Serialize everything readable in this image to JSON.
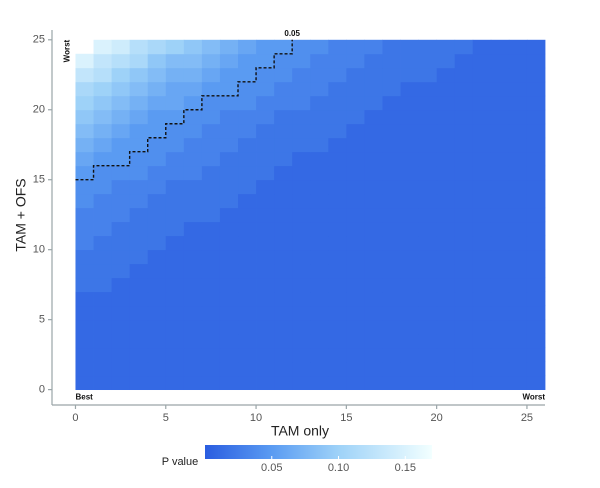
{
  "chart_data": {
    "type": "heatmap",
    "x_label": "TAM only",
    "y_label": "TAM + OFS",
    "x": [
      0,
      1,
      2,
      3,
      4,
      5,
      6,
      7,
      8,
      9,
      10,
      11,
      12,
      13,
      14,
      15,
      16,
      17,
      18,
      19,
      20,
      21,
      22,
      23,
      24,
      25
    ],
    "y": [
      0,
      1,
      2,
      3,
      4,
      5,
      6,
      7,
      8,
      9,
      10,
      11,
      12,
      13,
      14,
      15,
      16,
      17,
      18,
      19,
      20,
      21,
      22,
      23,
      24
    ],
    "z": [
      [
        0.01,
        0.01,
        0.01,
        0.01,
        0.01,
        0.01,
        0.01,
        0.01,
        0.01,
        0.01,
        0.01,
        0.01,
        0.01,
        0.01,
        0.01,
        0.01,
        0.01,
        0.01,
        0.01,
        0.01,
        0.01,
        0.01,
        0.01,
        0.01,
        0.01,
        0.01
      ],
      [
        0.01,
        0.01,
        0.01,
        0.01,
        0.01,
        0.01,
        0.01,
        0.01,
        0.01,
        0.01,
        0.01,
        0.01,
        0.01,
        0.01,
        0.01,
        0.01,
        0.01,
        0.01,
        0.01,
        0.01,
        0.01,
        0.01,
        0.01,
        0.01,
        0.01,
        0.01
      ],
      [
        0.01,
        0.01,
        0.01,
        0.01,
        0.01,
        0.01,
        0.01,
        0.01,
        0.01,
        0.01,
        0.01,
        0.01,
        0.01,
        0.01,
        0.01,
        0.01,
        0.01,
        0.01,
        0.01,
        0.01,
        0.01,
        0.01,
        0.01,
        0.01,
        0.01,
        0.01
      ],
      [
        0.01,
        0.01,
        0.01,
        0.01,
        0.01,
        0.01,
        0.01,
        0.01,
        0.01,
        0.01,
        0.01,
        0.01,
        0.01,
        0.01,
        0.01,
        0.01,
        0.01,
        0.01,
        0.01,
        0.01,
        0.01,
        0.01,
        0.01,
        0.01,
        0.01,
        0.01
      ],
      [
        0.01,
        0.01,
        0.01,
        0.01,
        0.01,
        0.01,
        0.01,
        0.01,
        0.01,
        0.01,
        0.01,
        0.01,
        0.01,
        0.01,
        0.01,
        0.01,
        0.01,
        0.01,
        0.01,
        0.01,
        0.01,
        0.01,
        0.01,
        0.01,
        0.01,
        0.01
      ],
      [
        0.01,
        0.01,
        0.01,
        0.01,
        0.01,
        0.01,
        0.01,
        0.01,
        0.01,
        0.01,
        0.01,
        0.01,
        0.01,
        0.01,
        0.01,
        0.01,
        0.01,
        0.01,
        0.01,
        0.01,
        0.01,
        0.01,
        0.01,
        0.01,
        0.01,
        0.01
      ],
      [
        0.01,
        0.01,
        0.01,
        0.01,
        0.01,
        0.01,
        0.01,
        0.01,
        0.01,
        0.01,
        0.01,
        0.01,
        0.01,
        0.01,
        0.01,
        0.01,
        0.01,
        0.01,
        0.01,
        0.01,
        0.01,
        0.01,
        0.01,
        0.01,
        0.01,
        0.01
      ],
      [
        0.02,
        0.02,
        0.01,
        0.01,
        0.01,
        0.01,
        0.01,
        0.01,
        0.01,
        0.01,
        0.01,
        0.01,
        0.01,
        0.01,
        0.01,
        0.01,
        0.01,
        0.01,
        0.01,
        0.01,
        0.01,
        0.01,
        0.01,
        0.01,
        0.01,
        0.01
      ],
      [
        0.02,
        0.02,
        0.02,
        0.01,
        0.01,
        0.01,
        0.01,
        0.01,
        0.01,
        0.01,
        0.01,
        0.01,
        0.01,
        0.01,
        0.01,
        0.01,
        0.01,
        0.01,
        0.01,
        0.01,
        0.01,
        0.01,
        0.01,
        0.01,
        0.01,
        0.01
      ],
      [
        0.02,
        0.02,
        0.02,
        0.02,
        0.01,
        0.01,
        0.01,
        0.01,
        0.01,
        0.01,
        0.01,
        0.01,
        0.01,
        0.01,
        0.01,
        0.01,
        0.01,
        0.01,
        0.01,
        0.01,
        0.01,
        0.01,
        0.01,
        0.01,
        0.01,
        0.01
      ],
      [
        0.03,
        0.02,
        0.02,
        0.02,
        0.02,
        0.01,
        0.01,
        0.01,
        0.01,
        0.01,
        0.01,
        0.01,
        0.01,
        0.01,
        0.01,
        0.01,
        0.01,
        0.01,
        0.01,
        0.01,
        0.01,
        0.01,
        0.01,
        0.01,
        0.01,
        0.01
      ],
      [
        0.03,
        0.03,
        0.02,
        0.02,
        0.02,
        0.02,
        0.01,
        0.01,
        0.01,
        0.01,
        0.01,
        0.01,
        0.01,
        0.01,
        0.01,
        0.01,
        0.01,
        0.01,
        0.01,
        0.01,
        0.01,
        0.01,
        0.01,
        0.01,
        0.01,
        0.01
      ],
      [
        0.03,
        0.03,
        0.03,
        0.02,
        0.02,
        0.02,
        0.02,
        0.02,
        0.01,
        0.01,
        0.01,
        0.01,
        0.01,
        0.01,
        0.01,
        0.01,
        0.01,
        0.01,
        0.01,
        0.01,
        0.01,
        0.01,
        0.01,
        0.01,
        0.01,
        0.01
      ],
      [
        0.04,
        0.03,
        0.03,
        0.03,
        0.02,
        0.02,
        0.02,
        0.02,
        0.02,
        0.01,
        0.01,
        0.01,
        0.01,
        0.01,
        0.01,
        0.01,
        0.01,
        0.01,
        0.01,
        0.01,
        0.01,
        0.01,
        0.01,
        0.01,
        0.01,
        0.01
      ],
      [
        0.04,
        0.04,
        0.03,
        0.03,
        0.03,
        0.02,
        0.02,
        0.02,
        0.02,
        0.02,
        0.01,
        0.01,
        0.01,
        0.01,
        0.01,
        0.01,
        0.01,
        0.01,
        0.01,
        0.01,
        0.01,
        0.01,
        0.01,
        0.01,
        0.01,
        0.01
      ],
      [
        0.05,
        0.04,
        0.04,
        0.04,
        0.03,
        0.03,
        0.03,
        0.02,
        0.02,
        0.02,
        0.02,
        0.01,
        0.01,
        0.01,
        0.01,
        0.01,
        0.01,
        0.01,
        0.01,
        0.01,
        0.01,
        0.01,
        0.01,
        0.01,
        0.01,
        0.01
      ],
      [
        0.06,
        0.05,
        0.05,
        0.04,
        0.04,
        0.03,
        0.03,
        0.03,
        0.02,
        0.02,
        0.02,
        0.02,
        0.01,
        0.01,
        0.01,
        0.01,
        0.01,
        0.01,
        0.01,
        0.01,
        0.01,
        0.01,
        0.01,
        0.01,
        0.01,
        0.01
      ],
      [
        0.07,
        0.06,
        0.05,
        0.05,
        0.04,
        0.04,
        0.03,
        0.03,
        0.03,
        0.02,
        0.02,
        0.02,
        0.02,
        0.02,
        0.01,
        0.01,
        0.01,
        0.01,
        0.01,
        0.01,
        0.01,
        0.01,
        0.01,
        0.01,
        0.01,
        0.01
      ],
      [
        0.08,
        0.07,
        0.06,
        0.05,
        0.05,
        0.04,
        0.04,
        0.03,
        0.03,
        0.03,
        0.02,
        0.02,
        0.02,
        0.02,
        0.02,
        0.01,
        0.01,
        0.01,
        0.01,
        0.01,
        0.01,
        0.01,
        0.01,
        0.01,
        0.01,
        0.01
      ],
      [
        0.09,
        0.08,
        0.07,
        0.06,
        0.05,
        0.05,
        0.04,
        0.04,
        0.03,
        0.03,
        0.03,
        0.02,
        0.02,
        0.02,
        0.02,
        0.02,
        0.01,
        0.01,
        0.01,
        0.01,
        0.01,
        0.01,
        0.01,
        0.01,
        0.01,
        0.01
      ],
      [
        0.1,
        0.09,
        0.08,
        0.07,
        0.06,
        0.06,
        0.05,
        0.04,
        0.04,
        0.04,
        0.03,
        0.03,
        0.03,
        0.02,
        0.02,
        0.02,
        0.02,
        0.01,
        0.01,
        0.01,
        0.01,
        0.01,
        0.01,
        0.01,
        0.01,
        0.01
      ],
      [
        0.11,
        0.1,
        0.09,
        0.08,
        0.07,
        0.06,
        0.06,
        0.05,
        0.05,
        0.04,
        0.04,
        0.03,
        0.03,
        0.03,
        0.02,
        0.02,
        0.02,
        0.02,
        0.01,
        0.01,
        0.01,
        0.01,
        0.01,
        0.01,
        0.01,
        0.01
      ],
      [
        0.13,
        0.12,
        0.1,
        0.09,
        0.08,
        0.07,
        0.07,
        0.06,
        0.05,
        0.05,
        0.04,
        0.04,
        0.03,
        0.03,
        0.03,
        0.02,
        0.02,
        0.02,
        0.02,
        0.02,
        0.01,
        0.01,
        0.01,
        0.01,
        0.01,
        0.01
      ],
      [
        0.15,
        0.13,
        0.12,
        0.11,
        0.09,
        0.08,
        0.08,
        0.07,
        0.06,
        0.05,
        0.05,
        0.04,
        0.04,
        0.03,
        0.03,
        0.03,
        0.02,
        0.02,
        0.02,
        0.02,
        0.02,
        0.01,
        0.01,
        0.01,
        0.01,
        0.01
      ],
      [
        null,
        0.15,
        0.14,
        0.12,
        0.11,
        0.1,
        0.09,
        0.08,
        0.07,
        0.06,
        0.05,
        0.05,
        0.04,
        0.04,
        0.03,
        0.03,
        0.03,
        0.02,
        0.02,
        0.02,
        0.02,
        0.02,
        0.01,
        0.01,
        0.01,
        0.01
      ]
    ],
    "xlim": [
      -1.3,
      26
    ],
    "ylim": [
      -1.1,
      25.7
    ],
    "xticks": [
      0,
      5,
      10,
      15,
      20,
      25
    ],
    "yticks": [
      0,
      5,
      10,
      15,
      20,
      25
    ],
    "colorscale": [
      [
        0,
        "#2a5de0"
      ],
      [
        0.05,
        "#5a9bf2"
      ],
      [
        0.1,
        "#9ed2f8"
      ],
      [
        0.17,
        "#f2ffff"
      ]
    ],
    "colorbar_title": "P value",
    "clim": [
      0,
      0.17
    ],
    "colorbar_ticks": [
      0.05,
      {
        "value": 0.1,
        "label": "0.10"
      },
      0.15
    ],
    "contour_level": 0.05,
    "corner_best": "Best",
    "corner_worst_x": "Worst",
    "corner_worst_y": "Worst"
  }
}
